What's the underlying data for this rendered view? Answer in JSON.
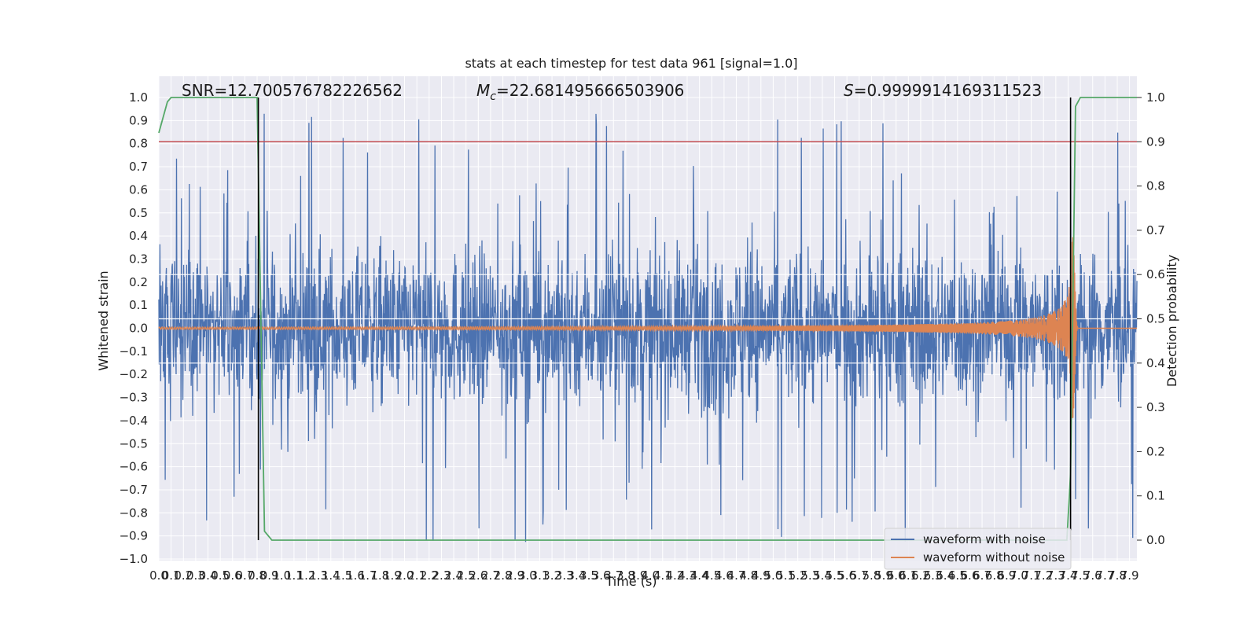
{
  "chart_data": {
    "type": "line",
    "title": "stats at each timestep for test data 961 [signal=1.0]",
    "xlabel": "Time (s)",
    "ylabel": "Whitened strain",
    "ylabel_right": "Detection probability",
    "xlim": [
      0,
      7.96
    ],
    "ylim": [
      -1.0,
      1.0
    ],
    "ylim_right": [
      0.0,
      1.0
    ],
    "x_ticks": [
      "0.0",
      "0.1",
      "0.2",
      "0.3",
      "0.4",
      "0.5",
      "0.6",
      "0.7",
      "0.8",
      "0.9",
      "1.0",
      "1.1",
      "1.2",
      "1.3",
      "1.4",
      "1.5",
      "1.6",
      "1.7",
      "1.8",
      "1.9",
      "2.0",
      "2.1",
      "2.2",
      "2.3",
      "2.4",
      "2.5",
      "2.6",
      "2.7",
      "2.8",
      "2.9",
      "3.0",
      "3.1",
      "3.2",
      "3.3",
      "3.4",
      "3.5",
      "3.6",
      "3.7",
      "3.8",
      "3.9",
      "4.0",
      "4.1",
      "4.2",
      "4.3",
      "4.4",
      "4.5",
      "4.6",
      "4.7",
      "4.8",
      "4.9",
      "5.0",
      "5.1",
      "5.2",
      "5.3",
      "5.4",
      "5.5",
      "5.6",
      "5.7",
      "5.8",
      "5.9",
      "6.0",
      "6.1",
      "6.2",
      "6.3",
      "6.4",
      "6.5",
      "6.6",
      "6.7",
      "6.8",
      "6.9",
      "7.0",
      "7.1",
      "7.2",
      "7.3",
      "7.4",
      "7.5",
      "7.6",
      "7.7",
      "7.8",
      "7.9"
    ],
    "y_ticks": [
      "1.0",
      "0.9",
      "0.8",
      "0.7",
      "0.6",
      "0.5",
      "0.4",
      "0.3",
      "0.2",
      "0.1",
      "0.0",
      "−0.1",
      "−0.2",
      "−0.3",
      "−0.4",
      "−0.5",
      "−0.6",
      "−0.7",
      "−0.8",
      "−0.9",
      "−1.0"
    ],
    "y_ticks_right": [
      "1.0",
      "0.9",
      "0.8",
      "0.7",
      "0.6",
      "0.5",
      "0.4",
      "0.3",
      "0.2",
      "0.1",
      "0.0"
    ],
    "annotations": {
      "snr": "SNR=12.700576782226562",
      "mc_symbol": "M",
      "mc_sub": "c",
      "mc_value": "=22.681495666503906",
      "s_symbol": "S",
      "s_value": "=0.9999914169311523"
    },
    "series": [
      {
        "name": "waveform with noise",
        "color": "#4c72b0",
        "envelope": {
          "typical_amplitude": 0.3,
          "peak_amplitude": 0.93
        }
      },
      {
        "name": "waveform without noise",
        "color": "#dd8452",
        "chirp": {
          "start": 0.0,
          "merger": 7.43,
          "end": 7.96,
          "amplitude_start": 0.005,
          "amplitude_peak": 0.5
        }
      },
      {
        "name": "detection probability",
        "color": "#55a868",
        "x": [
          0.0,
          0.07,
          0.1,
          0.15,
          0.8,
          0.86,
          0.92,
          7.39,
          7.42,
          7.46,
          7.5,
          7.96
        ],
        "y": [
          0.92,
          0.99,
          1.0,
          1.0,
          1.0,
          0.02,
          0.0,
          0.0,
          0.15,
          0.98,
          1.0,
          1.0
        ]
      }
    ],
    "threshold": {
      "value": 0.9,
      "axis": "right",
      "color": "#c44e52"
    },
    "vertical_lines": [
      0.81,
      7.42
    ],
    "legend_position": "lower right",
    "grid": true
  }
}
